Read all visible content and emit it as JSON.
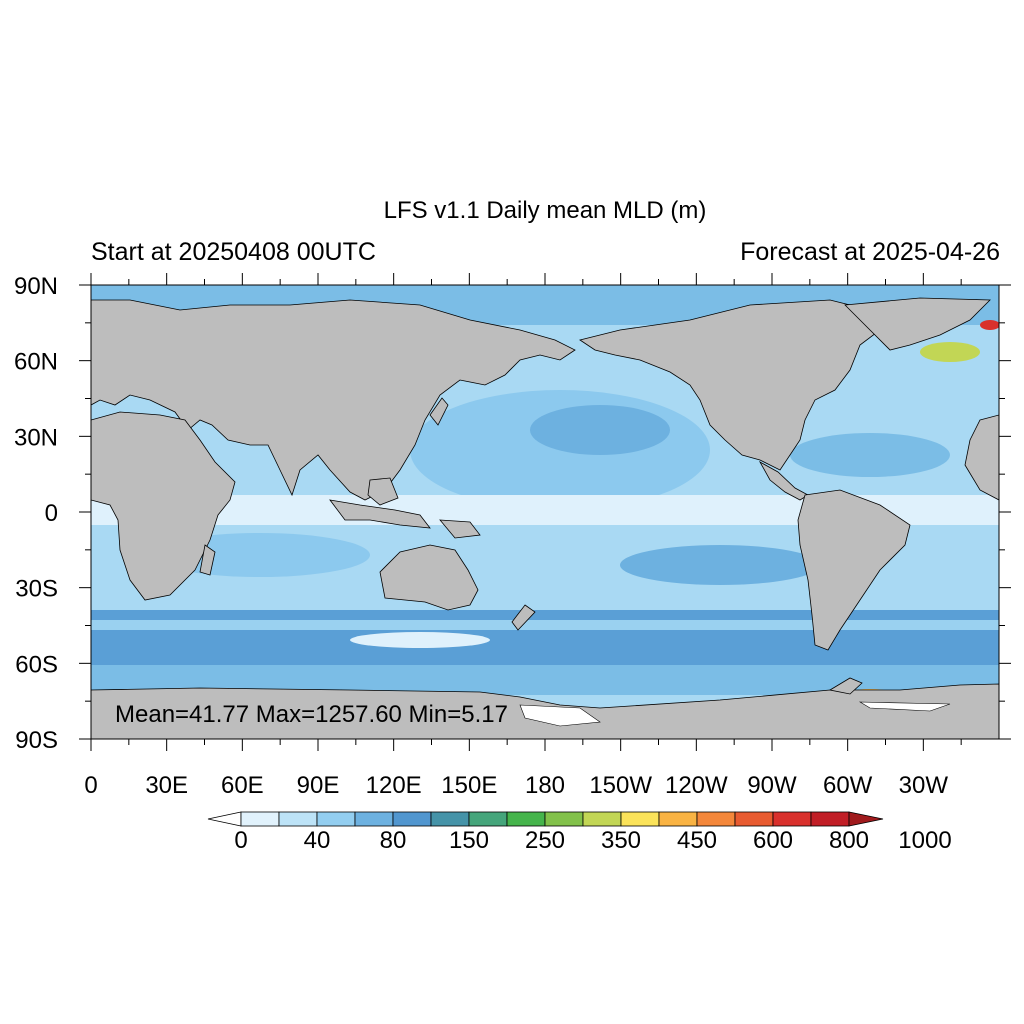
{
  "title": "LFS v1.1 Daily mean MLD (m)",
  "left_subtitle": "Start at 20250408 00UTC",
  "right_subtitle": "Forecast at 2025-04-26",
  "stats_label": "Mean=41.77  Max=1257.60  Min=5.17",
  "map": {
    "variable": "Daily mean MLD (m)",
    "projection": "cylindrical equidistant",
    "lon_range": [
      0,
      360
    ],
    "lat_range": [
      -90,
      90
    ],
    "land_color": "#bdbdbd",
    "lat_ticks": [
      {
        "value": 90,
        "label": "90N"
      },
      {
        "value": 60,
        "label": "60N"
      },
      {
        "value": 30,
        "label": "30N"
      },
      {
        "value": 0,
        "label": "0"
      },
      {
        "value": -30,
        "label": "30S"
      },
      {
        "value": -60,
        "label": "60S"
      },
      {
        "value": -90,
        "label": "90S"
      }
    ],
    "lon_ticks": [
      {
        "value": 0,
        "label": "0"
      },
      {
        "value": 30,
        "label": "30E"
      },
      {
        "value": 60,
        "label": "60E"
      },
      {
        "value": 90,
        "label": "90E"
      },
      {
        "value": 120,
        "label": "120E"
      },
      {
        "value": 150,
        "label": "150E"
      },
      {
        "value": 180,
        "label": "180"
      },
      {
        "value": 210,
        "label": "150W"
      },
      {
        "value": 240,
        "label": "120W"
      },
      {
        "value": 270,
        "label": "90W"
      },
      {
        "value": 300,
        "label": "60W"
      },
      {
        "value": 330,
        "label": "30W"
      }
    ]
  },
  "colorbar": {
    "labels": [
      "0",
      "40",
      "80",
      "150",
      "250",
      "350",
      "450",
      "600",
      "800",
      "1000"
    ],
    "colors": [
      "#ffffff",
      "#e1f2fc",
      "#bde3f7",
      "#93cef0",
      "#6db1e0",
      "#5196cf",
      "#4593a8",
      "#45a57b",
      "#45b44b",
      "#82c14a",
      "#c2d655",
      "#fbe35a",
      "#f9b343",
      "#f4873a",
      "#e85b30",
      "#d9302c",
      "#c11e26",
      "#a01a1d"
    ]
  }
}
